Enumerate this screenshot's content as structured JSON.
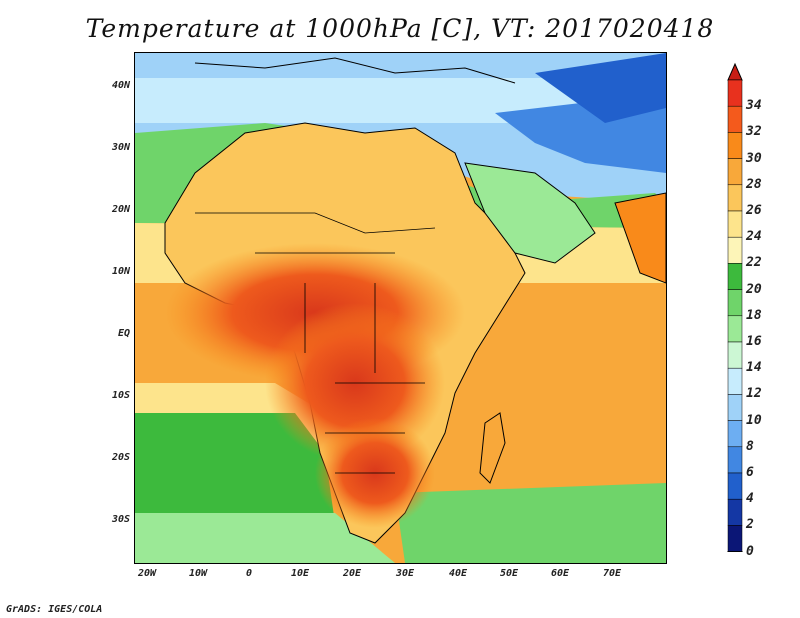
{
  "title": "Temperature at 1000hPa [C], VT: 2017020418",
  "credit": "GrADS: IGES/COLA",
  "lat_labels": [
    "40N",
    "30N",
    "20N",
    "10N",
    "EQ",
    "10S",
    "20S",
    "30S"
  ],
  "lon_labels": [
    "20W",
    "10W",
    "0",
    "10E",
    "20E",
    "30E",
    "40E",
    "50E",
    "60E",
    "70E"
  ],
  "colorbar": {
    "levels": [
      "34",
      "32",
      "30",
      "28",
      "26",
      "24",
      "22",
      "20",
      "18",
      "16",
      "14",
      "12",
      "10",
      "8",
      "6",
      "4",
      "2",
      "0"
    ],
    "colors": [
      "#e8311e",
      "#f45a1c",
      "#f98a1a",
      "#f8a83a",
      "#fbc65b",
      "#fde48c",
      "#fdf5b8",
      "#3dba3d",
      "#6fd46a",
      "#9be996",
      "#ccf7d4",
      "#c7ecfd",
      "#9fd2f8",
      "#6daef2",
      "#4187e2",
      "#2160cc",
      "#1437a4",
      "#0b1676"
    ],
    "over_color": "#c81e15",
    "under_color": "#e0d6fa"
  }
}
